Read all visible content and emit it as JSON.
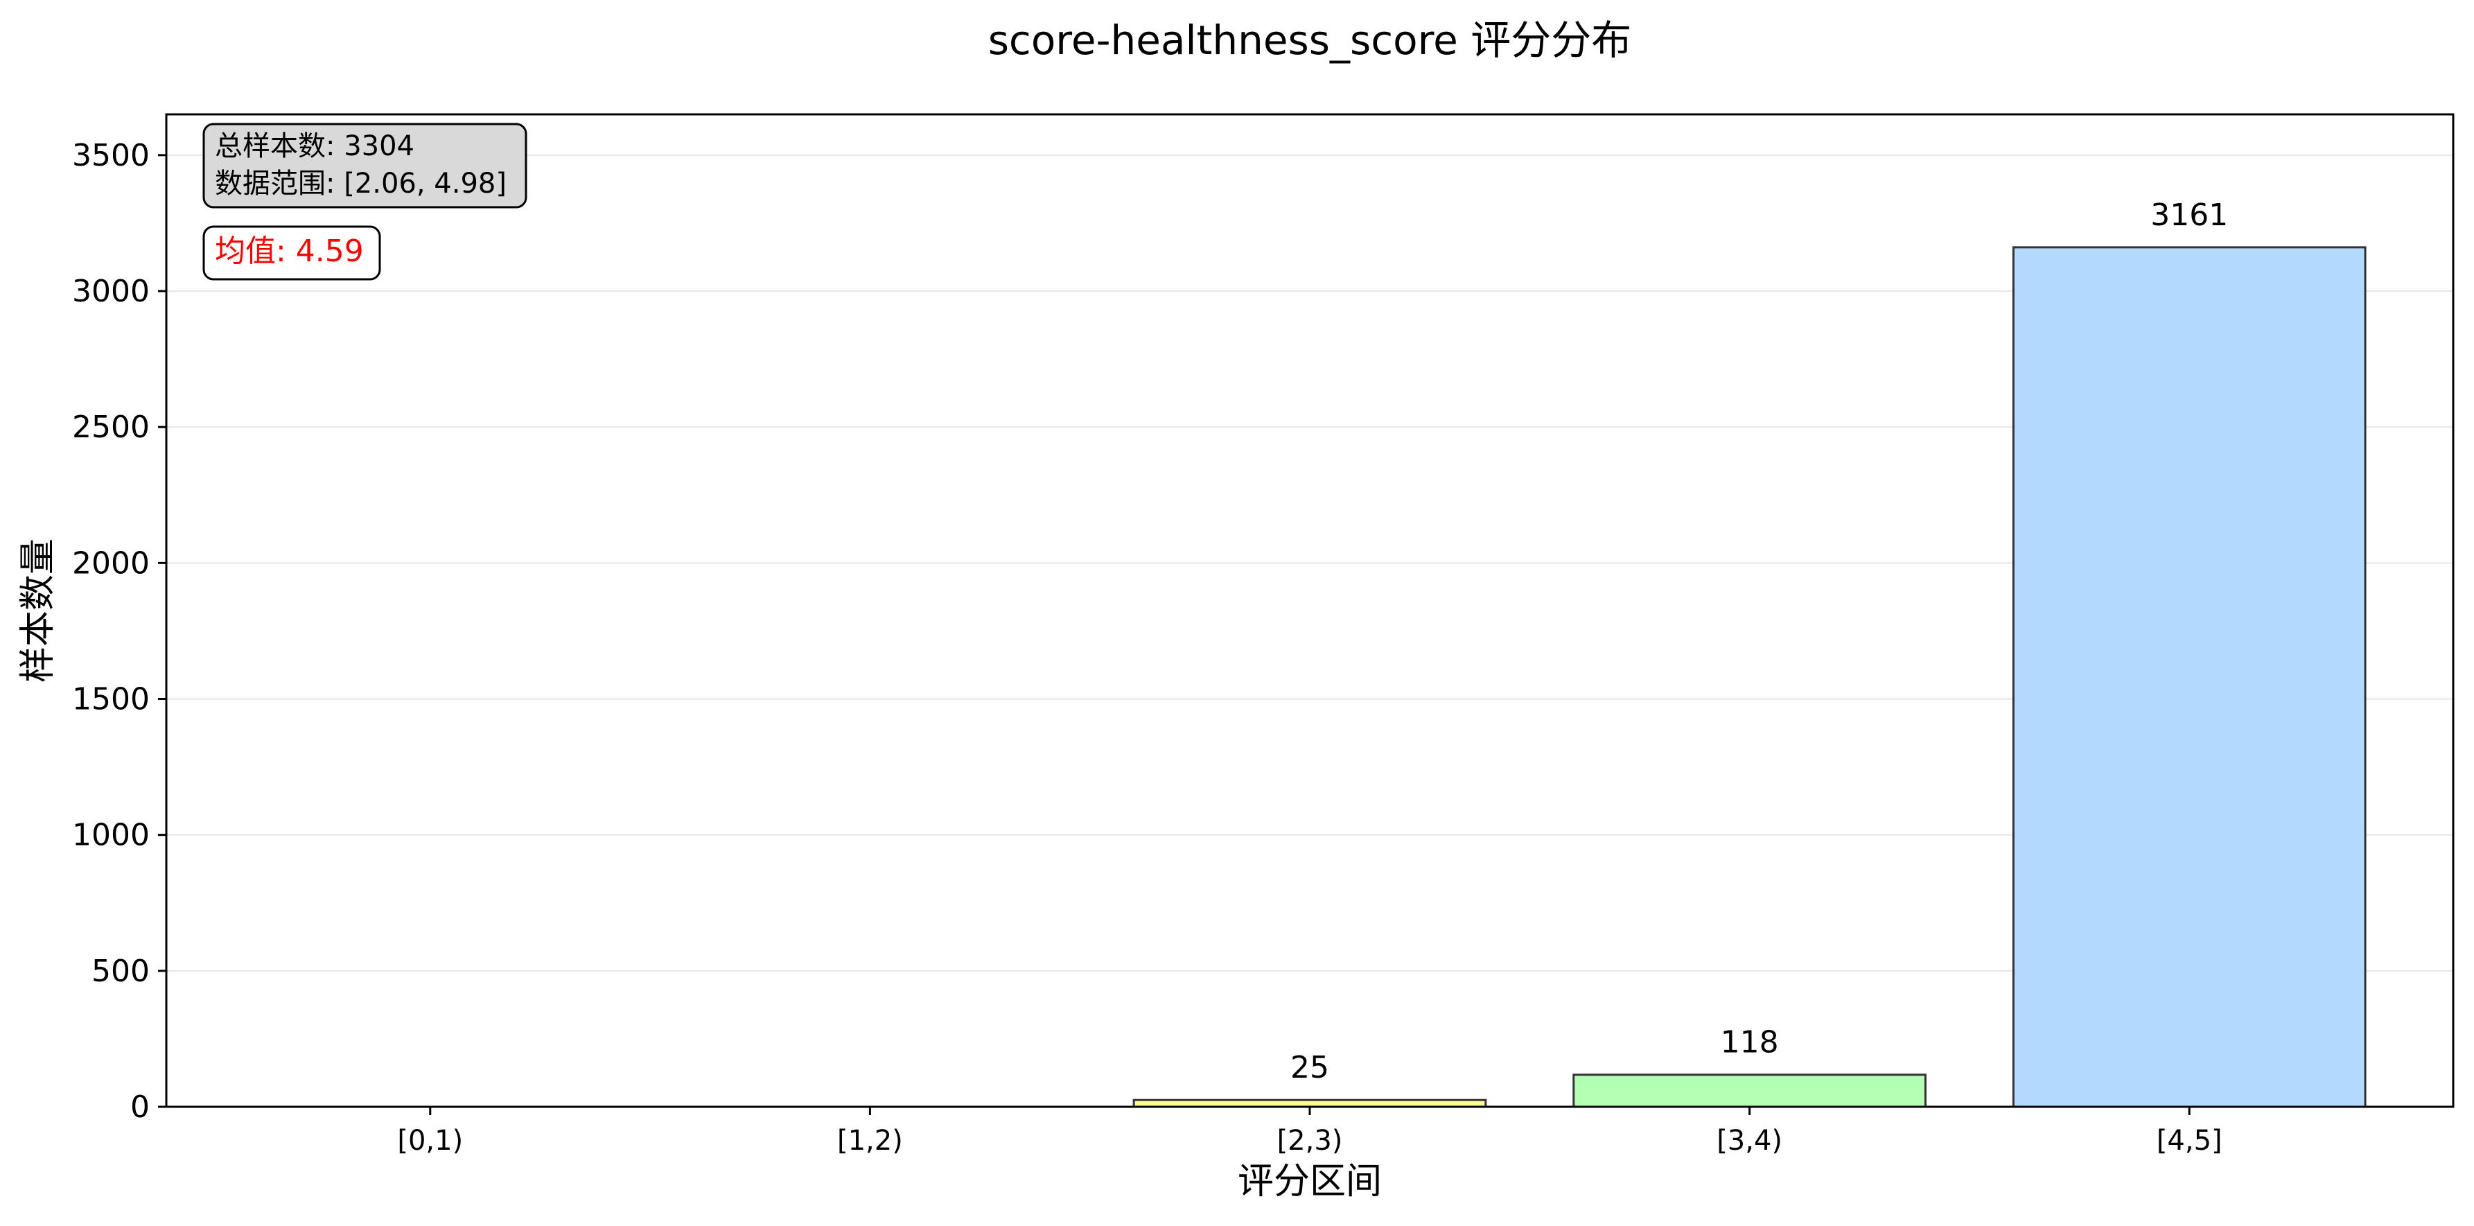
{
  "chart_data": {
    "type": "bar",
    "title": "score-healthness_score 评分分布",
    "xlabel": "评分区间",
    "ylabel": "样本数量",
    "categories": [
      "[0,1)",
      "[1,2)",
      "[2,3)",
      "[3,4)",
      "[4,5]"
    ],
    "values": [
      0,
      0,
      25,
      118,
      3161
    ],
    "value_labels": [
      "",
      "",
      "25",
      "118",
      "3161"
    ],
    "bar_colors": [
      "#ff9999",
      "#ffcc99",
      "#ffff99",
      "#b3ffb3",
      "#b3d9ff"
    ],
    "ylim": [
      0,
      3650
    ],
    "yticks": [
      0,
      500,
      1000,
      1500,
      2000,
      2500,
      3000,
      3500
    ],
    "grid": "y",
    "annotations": {
      "total_samples": "总样本数: 3304",
      "data_range": "数据范围: [2.06, 4.98]",
      "mean": "均值: 4.59"
    }
  }
}
